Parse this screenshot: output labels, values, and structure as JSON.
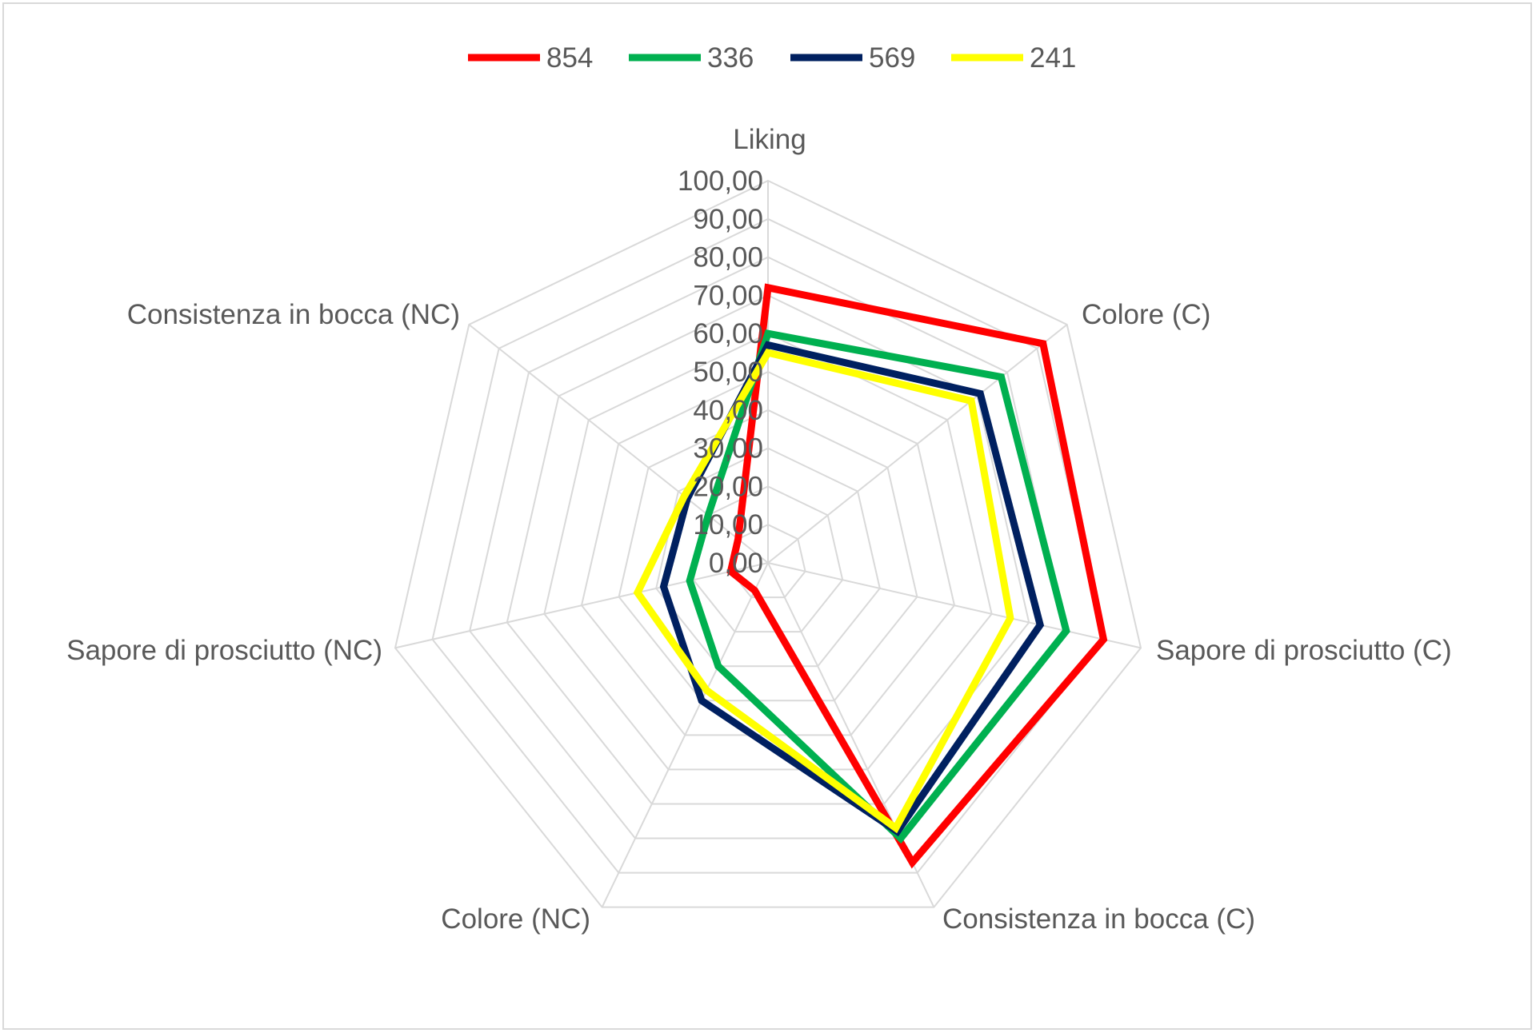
{
  "chart_data": {
    "type": "radar",
    "title": "",
    "axes": [
      "Liking",
      "Colore (C)",
      "Sapore di prosciutto (C)",
      "Consistenza in bocca (C)",
      "Colore (NC)",
      "Sapore di prosciutto (NC)",
      "Consistenza in bocca (NC)"
    ],
    "range": [
      0,
      100
    ],
    "ticks": [
      "0,00",
      "10,00",
      "20,00",
      "30,00",
      "40,00",
      "50,00",
      "60,00",
      "70,00",
      "80,00",
      "90,00",
      "100,00"
    ],
    "grid": true,
    "legend_position": "top",
    "series": [
      {
        "name": "854",
        "color": "#ff0000",
        "values": [
          72,
          92,
          90,
          87,
          8,
          10,
          10
        ]
      },
      {
        "name": "336",
        "color": "#00b050",
        "values": [
          60,
          78,
          80,
          80,
          30,
          21,
          20
        ]
      },
      {
        "name": "569",
        "color": "#002060",
        "values": [
          57,
          71,
          73,
          78,
          40,
          28,
          27
        ]
      },
      {
        "name": "241",
        "color": "#ffff00",
        "values": [
          55,
          68,
          65,
          77,
          37,
          35,
          28
        ]
      }
    ]
  }
}
